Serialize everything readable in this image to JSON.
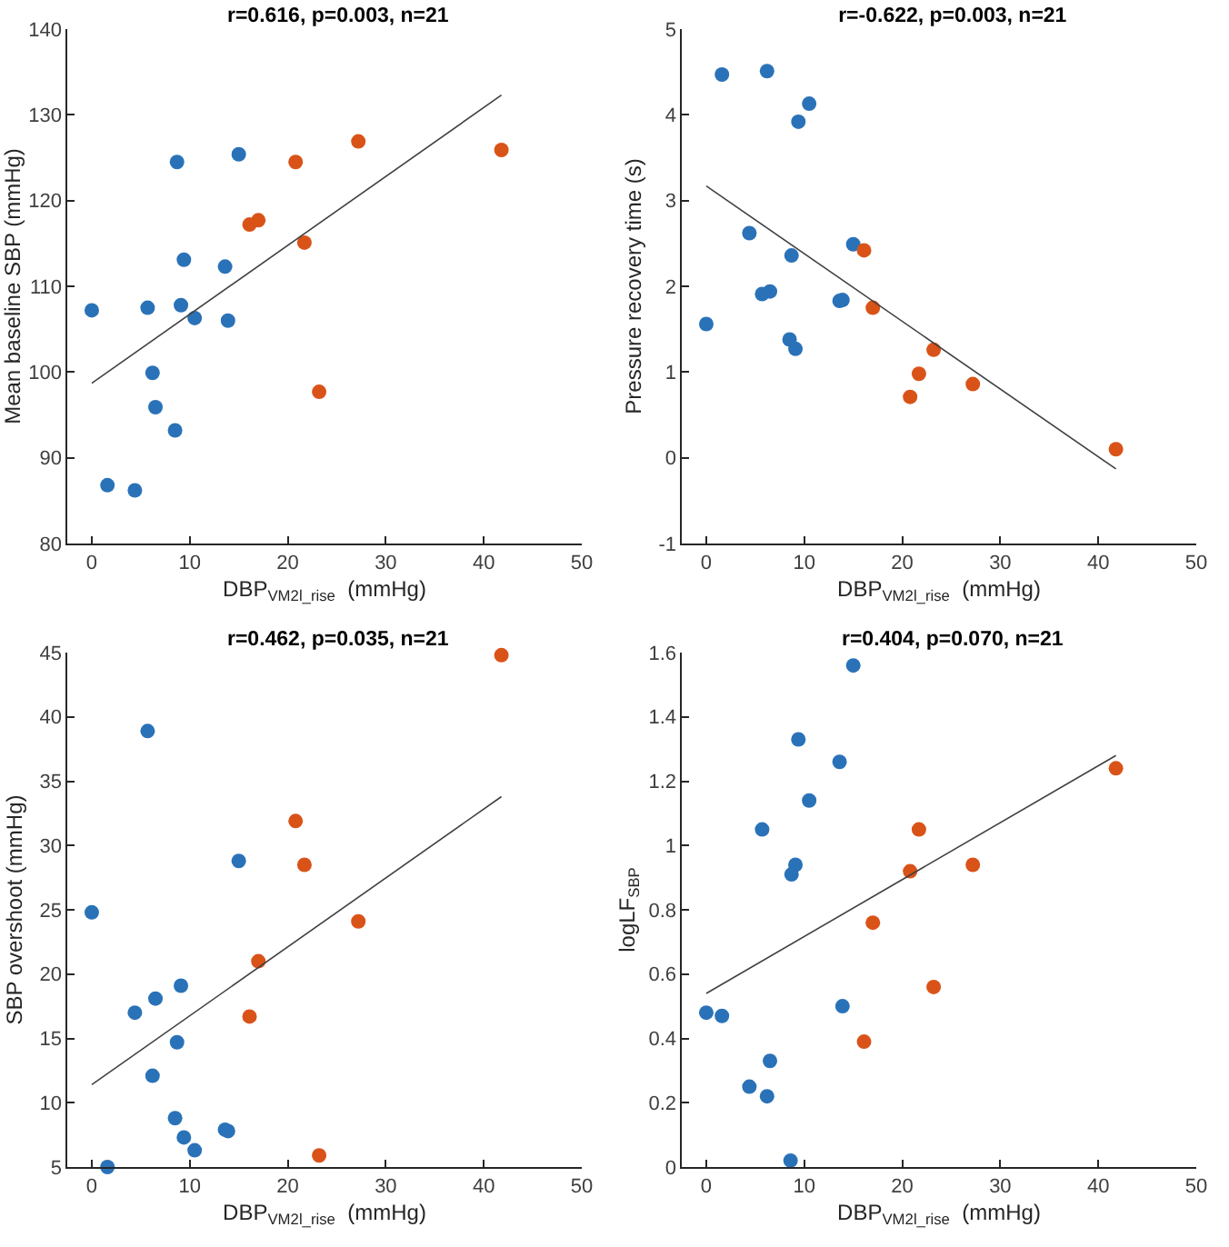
{
  "chart_data": [
    {
      "type": "scatter",
      "title": "r=0.616, p=0.003, n=21",
      "xlabel": "DBP$_{VM2l_rise}$  (mmHg)",
      "ylabel": "Mean baseline SBP (mmHg)",
      "marker": "circle",
      "xlim": [
        -2.5,
        50
      ],
      "xticks": [
        0,
        10,
        20,
        30,
        40,
        50
      ],
      "ylim": [
        80,
        140
      ],
      "yticks": [
        80,
        90,
        100,
        110,
        120,
        130,
        140
      ],
      "series": [
        {
          "color": "#2a72b8",
          "x": [
            0,
            1.6,
            4.4,
            5.7,
            6.2,
            6.5,
            8.5,
            8.7,
            9.1,
            9.4,
            10.5,
            13.6,
            13.9,
            15.0
          ],
          "values": [
            107.2,
            86.8,
            86.2,
            107.5,
            99.9,
            95.9,
            93.2,
            124.5,
            107.8,
            113.1,
            106.3,
            112.3,
            106.0,
            125.4
          ]
        },
        {
          "color": "#d95319",
          "x": [
            16.1,
            17.0,
            20.8,
            21.7,
            23.2,
            27.2,
            41.8
          ],
          "values": [
            117.2,
            117.7,
            124.5,
            115.1,
            97.7,
            126.9,
            125.9
          ]
        },
        {
          "type": "line",
          "marker": "none",
          "color": "#404040",
          "x": [
            0,
            41.8
          ],
          "values": [
            98.7,
            132.3
          ]
        }
      ]
    },
    {
      "type": "scatter",
      "title": "r=-0.622, p=0.003, n=21",
      "xlabel": "DBP$_{VM2l_rise}$  (mmHg)",
      "ylabel": "Pressure recovery time (s)",
      "marker": "circle",
      "xlim": [
        -2.5,
        50
      ],
      "xticks": [
        0,
        10,
        20,
        30,
        40,
        50
      ],
      "ylim": [
        -1,
        5
      ],
      "yticks": [
        -1,
        0,
        1,
        2,
        3,
        4,
        5
      ],
      "series": [
        {
          "color": "#2a72b8",
          "x": [
            0,
            1.6,
            4.4,
            5.7,
            6.2,
            6.5,
            8.5,
            8.7,
            9.1,
            9.4,
            10.5,
            13.6,
            13.9,
            15.0
          ],
          "values": [
            1.56,
            4.47,
            2.62,
            1.91,
            4.51,
            1.94,
            1.38,
            2.36,
            1.27,
            3.92,
            4.13,
            1.83,
            1.84,
            2.49
          ]
        },
        {
          "color": "#d95319",
          "x": [
            16.1,
            17.0,
            20.8,
            21.7,
            23.2,
            27.2,
            41.8
          ],
          "values": [
            2.42,
            1.75,
            0.71,
            0.98,
            1.26,
            0.86,
            0.1
          ]
        },
        {
          "type": "line",
          "marker": "none",
          "color": "#404040",
          "x": [
            0,
            41.8
          ],
          "values": [
            3.17,
            -0.13
          ]
        }
      ]
    },
    {
      "type": "scatter",
      "title": "r=0.462, p=0.035, n=21",
      "xlabel": "DBP$_{VM2l_rise}$  (mmHg)",
      "ylabel": "SBP overshoot (mmHg)",
      "marker": "circle",
      "xlim": [
        -2.5,
        50
      ],
      "xticks": [
        0,
        10,
        20,
        30,
        40,
        50
      ],
      "ylim": [
        5,
        45
      ],
      "yticks": [
        5,
        10,
        15,
        20,
        25,
        30,
        35,
        40,
        45
      ],
      "series": [
        {
          "color": "#2a72b8",
          "x": [
            0,
            1.6,
            4.4,
            5.7,
            6.2,
            6.5,
            8.5,
            8.7,
            9.1,
            9.4,
            10.5,
            13.6,
            13.9,
            15.0
          ],
          "values": [
            24.8,
            5.0,
            17.0,
            38.9,
            12.1,
            18.1,
            8.8,
            14.7,
            19.1,
            7.3,
            6.3,
            7.9,
            7.8,
            28.8
          ]
        },
        {
          "color": "#d95319",
          "x": [
            16.1,
            17.0,
            20.8,
            21.7,
            23.2,
            27.2,
            41.8
          ],
          "values": [
            16.7,
            21.0,
            31.9,
            28.5,
            5.9,
            24.1,
            44.8
          ]
        },
        {
          "type": "line",
          "marker": "none",
          "color": "#404040",
          "x": [
            0,
            41.8
          ],
          "values": [
            11.4,
            33.8
          ]
        }
      ]
    },
    {
      "type": "scatter",
      "title": "r=0.404, p=0.070, n=21",
      "xlabel": "DBP$_{VM2l_rise}$  (mmHg)",
      "ylabel": "logLF$_{SBP}$",
      "marker": "circle",
      "xlim": [
        -2.5,
        50
      ],
      "xticks": [
        0,
        10,
        20,
        30,
        40,
        50
      ],
      "ylim": [
        0,
        1.6
      ],
      "yticks": [
        0,
        0.2,
        0.4,
        0.6,
        0.8,
        1,
        1.2,
        1.4,
        1.6
      ],
      "series": [
        {
          "color": "#2a72b8",
          "x": [
            0,
            1.6,
            4.4,
            5.7,
            6.2,
            6.5,
            8.6,
            8.7,
            9.1,
            9.4,
            10.5,
            13.6,
            13.9,
            15.0
          ],
          "values": [
            0.48,
            0.47,
            0.25,
            1.05,
            0.22,
            0.33,
            0.02,
            0.91,
            0.94,
            1.33,
            1.14,
            1.26,
            0.5,
            1.56
          ]
        },
        {
          "color": "#d95319",
          "x": [
            16.1,
            17.0,
            20.8,
            21.7,
            23.2,
            27.2,
            41.8
          ],
          "values": [
            0.39,
            0.76,
            0.92,
            1.05,
            0.56,
            0.94,
            1.24
          ]
        },
        {
          "type": "line",
          "marker": "none",
          "color": "#404040",
          "x": [
            0,
            41.8
          ],
          "values": [
            0.54,
            1.28
          ]
        }
      ]
    }
  ]
}
